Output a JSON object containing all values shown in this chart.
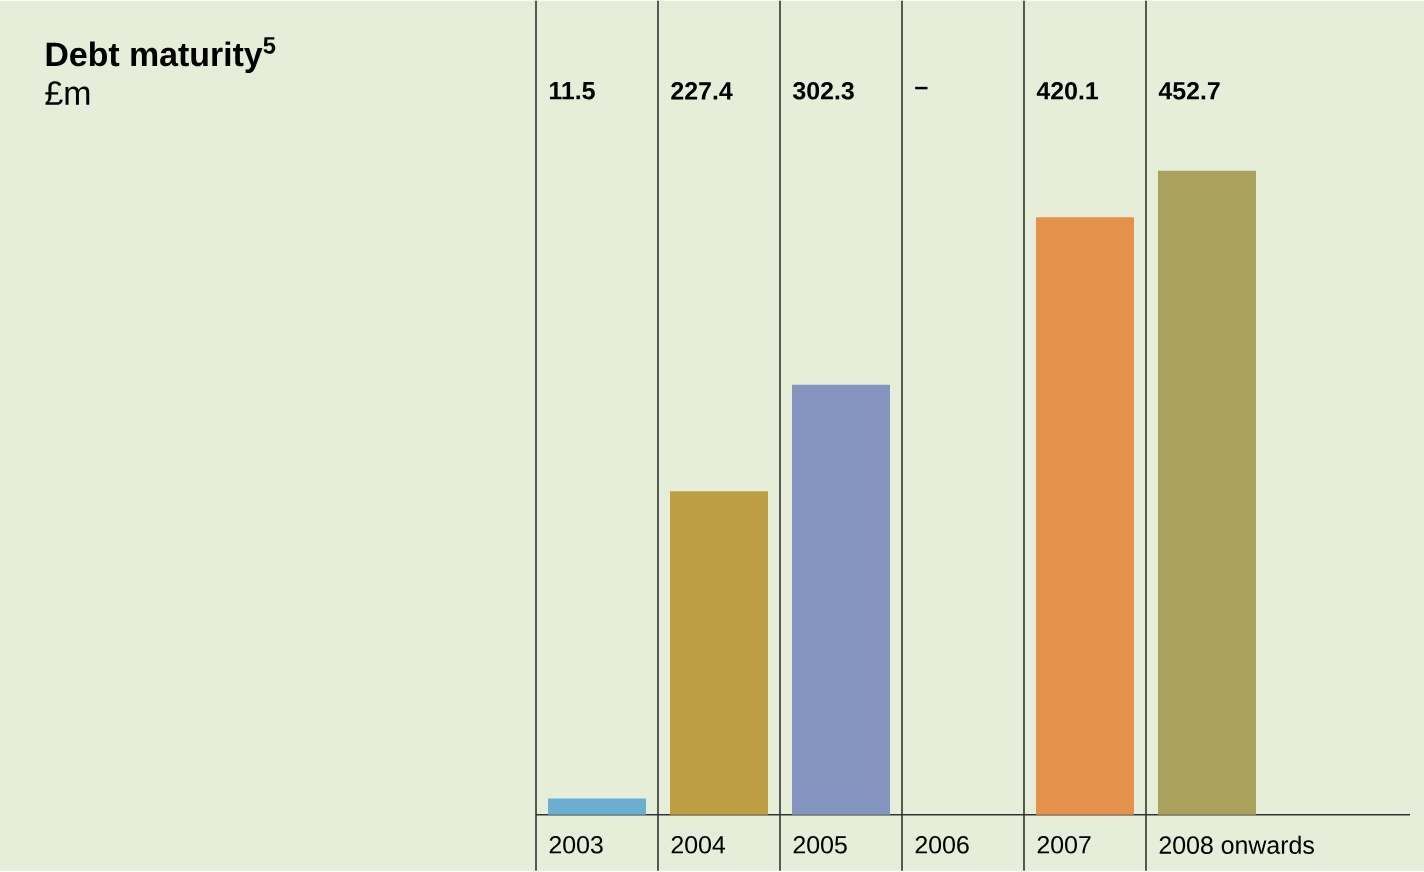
{
  "chart_data": {
    "type": "bar",
    "title": "Debt maturity$^{5}$",
    "subtitle": "£m",
    "categories": [
      "2003",
      "2004",
      "2005",
      "2006",
      "2007",
      "2008 onwards"
    ],
    "values": [
      11.5,
      227.4,
      302.3,
      null,
      420.1,
      452.7
    ],
    "colors": [
      "#6aaed0",
      "#bd9e42",
      "#8495c0",
      "#999999",
      "#e4924b",
      "#aaa25c"
    ],
    "value_labels": [
      "11.5",
      "227.4",
      "302.3",
      "–",
      "420.1",
      "452.7"
    ]
  }
}
